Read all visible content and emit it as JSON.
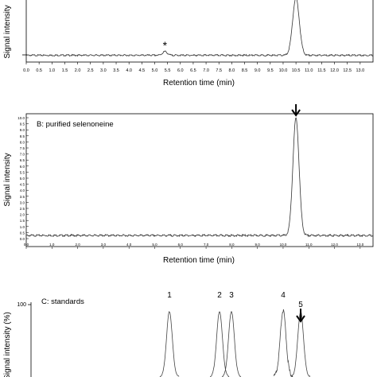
{
  "chart_data": [
    {
      "type": "line",
      "panel": "A",
      "title": "",
      "xlabel": "Retention time (min)",
      "ylabel": "Signal intensity",
      "xlim": [
        0,
        13.5
      ],
      "xticks": [
        "0.0",
        "0.5",
        "1.0",
        "1.5",
        "2.0",
        "2.5",
        "3.0",
        "3.5",
        "4.0",
        "4.5",
        "5.0",
        "5.5",
        "6.0",
        "6.5",
        "7.0",
        "7.5",
        "8.0",
        "8.5",
        "9.0",
        "9.5",
        "10.0",
        "10.5",
        "11.0",
        "11.5",
        "12.0",
        "12.5",
        "13.0"
      ],
      "baseline": 0.3,
      "peaks": [
        {
          "rt": 5.4,
          "height": 0.6,
          "width": 0.09,
          "marker": "*"
        },
        {
          "rt": 10.5,
          "height": 9.0,
          "width": 0.13,
          "marker": ""
        }
      ],
      "annotations": [
        "*"
      ]
    },
    {
      "type": "line",
      "panel": "B",
      "title": "B: purified selenoneine",
      "xlabel": "Retention time (min)",
      "ylabel": "Signal intensity",
      "xlim": [
        0,
        13.5
      ],
      "ylim": [
        0,
        10
      ],
      "xticks": [
        "0.0",
        "1.0",
        "2.0",
        "3.0",
        "4.0",
        "5.0",
        "6.0",
        "7.0",
        "8.0",
        "9.0",
        "10.0",
        "11.0",
        "12.0",
        "13.0"
      ],
      "yticks": [
        "0.0",
        "0.5",
        "1.0",
        "1.5",
        "2.0",
        "2.5",
        "3.0",
        "3.5",
        "4.0",
        "4.5",
        "5.0",
        "5.5",
        "6.0",
        "6.5",
        "7.0",
        "7.5",
        "8.0",
        "8.5",
        "9.0",
        "9.5",
        "10.0"
      ],
      "baseline": 0.3,
      "peaks": [
        {
          "rt": 10.5,
          "height": 9.7,
          "width": 0.12,
          "marker": "arrow"
        }
      ]
    },
    {
      "type": "line",
      "panel": "C",
      "title": "C: standards",
      "xlabel": "",
      "ylabel": "Signal intensity (%)",
      "yticks": [
        "100"
      ],
      "peaks": [
        {
          "label": "1",
          "rt": 1,
          "height": 100
        },
        {
          "label": "2",
          "rt": 2,
          "height": 100
        },
        {
          "label": "3",
          "rt": 3,
          "height": 100
        },
        {
          "label": "4",
          "rt": 4,
          "height": 100
        },
        {
          "label": "5",
          "rt": 5,
          "height": 100,
          "marker": "arrow"
        }
      ]
    }
  ]
}
